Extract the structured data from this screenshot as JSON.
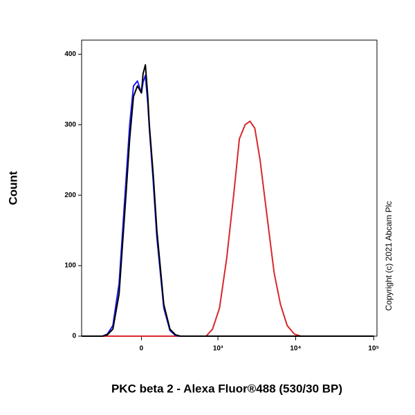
{
  "chart_data": {
    "type": "line",
    "x_label": "PKC beta 2 - Alexa Fluor®488 (530/30 BP)",
    "y_label": "Count",
    "annotation": "Copyright (c) 2021 Abcam Plc",
    "xscale": "biexponential",
    "xlim": [
      -600,
      110000
    ],
    "xticks": [
      0,
      {
        "value": 1000,
        "label": "10³"
      },
      {
        "value": 10000,
        "label": "10⁴"
      },
      {
        "value": 100000,
        "label": "10⁵"
      }
    ],
    "ylim": [
      0,
      420
    ],
    "yticks": [
      0,
      100,
      200,
      300,
      400
    ],
    "x": [
      -600,
      -400,
      -300,
      -250,
      -200,
      -150,
      -100,
      -75,
      -50,
      -25,
      0,
      10,
      25,
      40,
      50,
      75,
      100,
      150,
      200,
      250,
      300,
      400,
      700,
      850,
      1050,
      1300,
      1600,
      1900,
      2250,
      2600,
      3000,
      3500,
      4300,
      5300,
      6400,
      7800,
      9600,
      11700,
      100000
    ],
    "series": [
      {
        "color": "#d8262b",
        "values": [
          0,
          0,
          0,
          0,
          0,
          0,
          0,
          0,
          0,
          0,
          0,
          0,
          0,
          0,
          0,
          0,
          0,
          0,
          0,
          0,
          0,
          0,
          0,
          10,
          40,
          110,
          200,
          280,
          300,
          305,
          295,
          250,
          170,
          90,
          45,
          15,
          3,
          0,
          0
        ]
      },
      {
        "color": "#1a1aff",
        "values": [
          0,
          0,
          0,
          3,
          15,
          75,
          220,
          300,
          355,
          362,
          345,
          360,
          370,
          330,
          295,
          220,
          140,
          40,
          8,
          1,
          0,
          0,
          0,
          0,
          0,
          0,
          0,
          0,
          0,
          0,
          0,
          0,
          0,
          0,
          0,
          0,
          0,
          0,
          0
        ]
      },
      {
        "color": "#000000",
        "values": [
          0,
          0,
          0,
          2,
          10,
          60,
          200,
          280,
          340,
          355,
          345,
          372,
          385,
          340,
          300,
          230,
          150,
          45,
          10,
          2,
          0,
          0,
          0,
          0,
          0,
          0,
          0,
          0,
          0,
          0,
          0,
          0,
          0,
          0,
          0,
          0,
          0,
          0,
          0
        ]
      }
    ]
  }
}
